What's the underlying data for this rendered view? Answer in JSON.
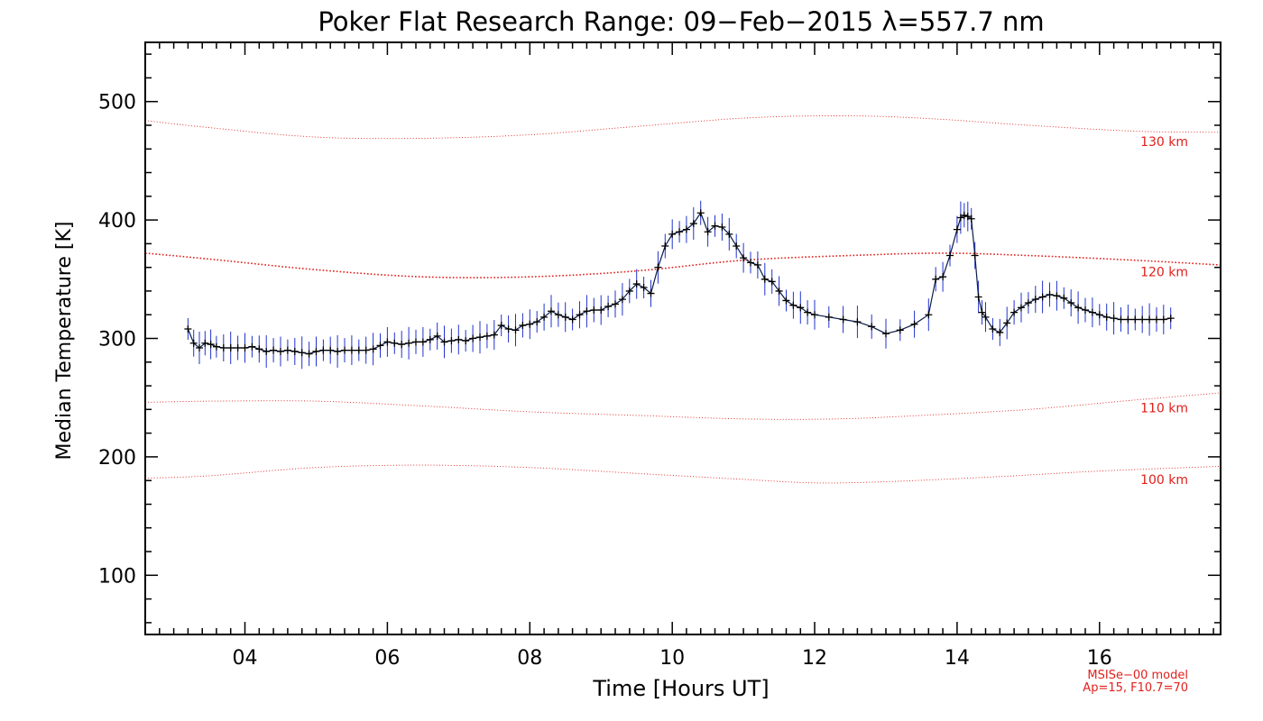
{
  "chart_data": {
    "type": "line",
    "title": "Poker Flat Research Range: 09−Feb−2015 λ=557.7 nm",
    "xlabel": "Time [Hours UT]",
    "ylabel": "Median Temperature [K]",
    "xlim": [
      2.6,
      17.7
    ],
    "ylim": [
      50,
      550
    ],
    "x_ticks": [
      4,
      6,
      8,
      10,
      12,
      14,
      16
    ],
    "x_tick_labels": [
      "04",
      "06",
      "08",
      "10",
      "12",
      "14",
      "16"
    ],
    "y_ticks": [
      100,
      200,
      300,
      400,
      500
    ],
    "y_tick_labels": [
      "100",
      "200",
      "300",
      "400",
      "500"
    ],
    "grid": false,
    "colors": {
      "data": "#000000",
      "errorbar": "#2233cc",
      "model": "#e0201c",
      "axes": "#000000"
    },
    "series": [
      {
        "x": [
          3.2,
          3.28,
          3.36,
          3.44,
          3.52,
          3.6,
          3.7,
          3.8,
          3.9,
          4.0,
          4.1,
          4.2,
          4.3,
          4.4,
          4.5,
          4.6,
          4.7,
          4.8,
          4.9,
          5.0,
          5.1,
          5.2,
          5.3,
          5.4,
          5.5,
          5.6,
          5.7,
          5.8,
          5.9,
          6.0,
          6.1,
          6.2,
          6.3,
          6.4,
          6.5,
          6.6,
          6.7,
          6.8,
          6.9,
          7.0,
          7.1,
          7.2,
          7.3,
          7.4,
          7.5,
          7.6,
          7.7,
          7.8,
          7.9,
          8.0,
          8.1,
          8.2,
          8.3,
          8.4,
          8.5,
          8.6,
          8.7,
          8.8,
          8.9,
          9.0,
          9.1,
          9.2,
          9.3,
          9.4,
          9.5,
          9.6,
          9.7,
          9.8,
          9.9,
          10.0,
          10.1,
          10.2,
          10.3,
          10.4,
          10.5,
          10.6,
          10.7,
          10.8,
          10.9,
          11.0,
          11.1,
          11.2,
          11.3,
          11.4,
          11.5,
          11.6,
          11.7,
          11.8,
          11.9,
          12.0,
          12.2,
          12.4,
          12.6,
          12.8,
          13.0,
          13.2,
          13.4,
          13.6,
          13.7,
          13.8,
          13.9,
          14.0,
          14.05,
          14.1,
          14.15,
          14.2,
          14.25,
          14.3,
          14.35,
          14.4,
          14.5,
          14.6,
          14.7,
          14.8,
          14.9,
          15.0,
          15.1,
          15.2,
          15.3,
          15.4,
          15.5,
          15.6,
          15.7,
          15.8,
          15.9,
          16.0,
          16.1,
          16.2,
          16.3,
          16.4,
          16.5,
          16.6,
          16.7,
          16.8,
          16.9,
          17.0
        ],
        "y": [
          308,
          296,
          292,
          296,
          295,
          293,
          292,
          292,
          292,
          292,
          293,
          291,
          289,
          290,
          289,
          290,
          289,
          288,
          287,
          289,
          290,
          290,
          289,
          290,
          290,
          290,
          290,
          291,
          294,
          297,
          296,
          295,
          296,
          297,
          297,
          299,
          302,
          297,
          298,
          299,
          298,
          300,
          301,
          302,
          303,
          311,
          308,
          307,
          311,
          312,
          314,
          318,
          323,
          320,
          318,
          316,
          320,
          323,
          324,
          324,
          327,
          329,
          333,
          340,
          346,
          343,
          338,
          360,
          378,
          388,
          390,
          392,
          397,
          406,
          390,
          395,
          394,
          388,
          378,
          368,
          364,
          362,
          350,
          348,
          340,
          332,
          328,
          326,
          322,
          320,
          318,
          316,
          314,
          310,
          304,
          307,
          312,
          320,
          350,
          352,
          370,
          392,
          402,
          404,
          403,
          401,
          370,
          335,
          322,
          318,
          308,
          305,
          313,
          322,
          326,
          330,
          333,
          335,
          337,
          336,
          334,
          330,
          326,
          324,
          322,
          320,
          318,
          317,
          316,
          316,
          316,
          316,
          316,
          316,
          316,
          317
        ]
      }
    ],
    "model_curves": [
      {
        "label": "130 km",
        "x": [
          2.6,
          3.5,
          5.0,
          6.5,
          8.0,
          9.5,
          11.0,
          12.3,
          13.5,
          15.0,
          16.5,
          17.7
        ],
        "y": [
          484,
          478,
          470,
          469,
          472,
          479,
          486,
          488,
          486,
          480,
          475,
          474
        ]
      },
      {
        "label": "120 km",
        "x": [
          2.6,
          3.5,
          5.0,
          6.5,
          8.0,
          9.5,
          11.0,
          12.5,
          13.8,
          15.0,
          16.5,
          17.7
        ],
        "y": [
          372,
          367,
          358,
          352,
          352,
          357,
          366,
          370,
          372,
          370,
          366,
          362
        ]
      },
      {
        "label": "110 km",
        "x": [
          2.6,
          3.5,
          5.0,
          6.5,
          8.0,
          9.5,
          11.0,
          12.3,
          13.5,
          15.0,
          16.5,
          17.7
        ],
        "y": [
          246,
          247,
          247,
          243,
          238,
          235,
          232,
          232,
          235,
          240,
          248,
          254
        ]
      },
      {
        "label": "100 km",
        "x": [
          2.6,
          3.5,
          5.0,
          6.5,
          8.0,
          9.5,
          11.0,
          12.0,
          13.0,
          14.5,
          16.0,
          17.7
        ],
        "y": [
          182,
          184,
          191,
          193,
          191,
          186,
          181,
          178,
          179,
          183,
          188,
          192
        ]
      }
    ],
    "annotations": [
      "MSISe−00 model",
      "Ap=15, F10.7=70"
    ]
  }
}
